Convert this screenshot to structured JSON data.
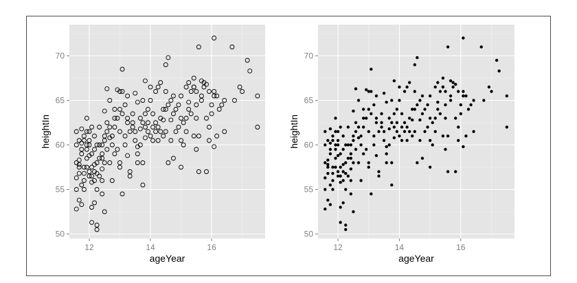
{
  "chart_data": [
    {
      "type": "scatter",
      "marker": "open-circle",
      "xlabel": "ageYear",
      "ylabel": "heightIn",
      "xlim": [
        11.35,
        17.75
      ],
      "ylim": [
        49.5,
        73.5
      ],
      "xticks": [
        "12",
        "14",
        "16"
      ],
      "yticks": [
        "50",
        "55",
        "60",
        "65",
        "70"
      ],
      "grid": true,
      "panel_color": "#e5e5e5",
      "point_color": "#000000",
      "points_source": "shared"
    },
    {
      "type": "scatter",
      "marker": "filled-circle",
      "xlabel": "ageYear",
      "ylabel": "heightIn",
      "xlim": [
        11.35,
        17.75
      ],
      "ylim": [
        49.5,
        73.5
      ],
      "xticks": [
        "12",
        "14",
        "16"
      ],
      "yticks": [
        "50",
        "55",
        "60",
        "65",
        "70"
      ],
      "grid": true,
      "panel_color": "#e5e5e5",
      "point_color": "#000000",
      "points_source": "shared"
    }
  ],
  "points": [
    [
      11.58,
      56.3
    ],
    [
      11.67,
      57.5
    ],
    [
      11.58,
      61.5
    ],
    [
      11.75,
      61.8
    ],
    [
      11.67,
      60.5
    ],
    [
      11.58,
      60.0
    ],
    [
      11.58,
      55.0
    ],
    [
      11.67,
      56.8
    ],
    [
      11.75,
      59.5
    ],
    [
      11.83,
      56.0
    ],
    [
      11.92,
      57.5
    ],
    [
      11.92,
      61.5
    ],
    [
      11.67,
      53.8
    ],
    [
      11.75,
      53.3
    ],
    [
      11.58,
      52.8
    ],
    [
      11.83,
      61.0
    ],
    [
      11.92,
      58.5
    ],
    [
      12.0,
      60.0
    ],
    [
      12.08,
      59.0
    ],
    [
      12.0,
      57.0
    ],
    [
      12.08,
      56.5
    ],
    [
      12.17,
      56.0
    ],
    [
      12.25,
      55.0
    ],
    [
      12.17,
      57.8
    ],
    [
      12.25,
      60.0
    ],
    [
      12.33,
      58.5
    ],
    [
      12.42,
      59.0
    ],
    [
      12.5,
      60.5
    ],
    [
      12.58,
      61.5
    ],
    [
      12.67,
      62.0
    ],
    [
      12.75,
      60.0
    ],
    [
      12.83,
      62.0
    ],
    [
      12.92,
      63.0
    ],
    [
      13.0,
      64.0
    ],
    [
      13.08,
      66.0
    ],
    [
      13.17,
      64.5
    ],
    [
      13.25,
      63.0
    ],
    [
      13.33,
      61.5
    ],
    [
      13.42,
      62.0
    ],
    [
      13.5,
      60.5
    ],
    [
      13.58,
      59.0
    ],
    [
      13.67,
      61.8
    ],
    [
      13.75,
      62.5
    ],
    [
      13.83,
      63.5
    ],
    [
      13.92,
      64.0
    ],
    [
      14.0,
      65.0
    ],
    [
      14.08,
      62.0
    ],
    [
      14.17,
      61.5
    ],
    [
      14.25,
      60.5
    ],
    [
      14.33,
      63.0
    ],
    [
      14.42,
      62.8
    ],
    [
      14.5,
      66.0
    ],
    [
      14.58,
      64.5
    ],
    [
      14.67,
      65.0
    ],
    [
      14.75,
      63.5
    ],
    [
      14.83,
      64.0
    ],
    [
      14.92,
      62.0
    ],
    [
      15.0,
      60.5
    ],
    [
      15.08,
      62.5
    ],
    [
      15.17,
      63.0
    ],
    [
      15.25,
      64.0
    ],
    [
      15.33,
      66.0
    ],
    [
      15.42,
      66.5
    ],
    [
      15.5,
      63.0
    ],
    [
      15.58,
      61.0
    ],
    [
      15.67,
      65.5
    ],
    [
      15.75,
      67.0
    ],
    [
      15.83,
      63.0
    ],
    [
      15.92,
      62.0
    ],
    [
      16.0,
      64.5
    ],
    [
      16.08,
      66.0
    ],
    [
      16.17,
      65.5
    ],
    [
      16.33,
      64.5
    ],
    [
      16.42,
      65.0
    ],
    [
      16.67,
      71.0
    ],
    [
      16.92,
      66.5
    ],
    [
      17.17,
      69.5
    ],
    [
      17.25,
      68.3
    ],
    [
      17.5,
      65.5
    ],
    [
      17.5,
      62.0
    ],
    [
      16.08,
      72.0
    ],
    [
      15.58,
      71.0
    ],
    [
      14.58,
      69.8
    ],
    [
      14.5,
      69.0
    ],
    [
      13.08,
      68.5
    ],
    [
      12.08,
      51.3
    ],
    [
      12.25,
      51.0
    ],
    [
      12.25,
      50.5
    ],
    [
      12.5,
      52.5
    ],
    [
      12.42,
      54.5
    ],
    [
      13.08,
      54.5
    ],
    [
      13.75,
      55.5
    ],
    [
      12.58,
      66.3
    ],
    [
      12.92,
      66.2
    ],
    [
      13.83,
      67.2
    ],
    [
      14.25,
      66.5
    ],
    [
      15.0,
      65.5
    ],
    [
      15.25,
      67.0
    ],
    [
      15.42,
      66.5
    ],
    [
      15.67,
      67.2
    ],
    [
      15.83,
      66.8
    ],
    [
      16.08,
      65.5
    ],
    [
      14.75,
      58.5
    ],
    [
      15.0,
      57.5
    ],
    [
      15.5,
      59.5
    ],
    [
      15.58,
      57.0
    ],
    [
      15.83,
      57.0
    ],
    [
      16.08,
      59.8
    ],
    [
      16.42,
      61.5
    ],
    [
      15.92,
      60.5
    ],
    [
      11.67,
      58.3
    ],
    [
      11.83,
      57.5
    ],
    [
      12.0,
      58.8
    ],
    [
      12.08,
      55.8
    ],
    [
      12.17,
      57.0
    ],
    [
      12.33,
      56.5
    ],
    [
      12.42,
      57.3
    ],
    [
      12.5,
      58.0
    ],
    [
      12.58,
      59.5
    ],
    [
      12.67,
      58.0
    ],
    [
      12.75,
      61.0
    ],
    [
      12.83,
      59.0
    ],
    [
      13.0,
      61.5
    ],
    [
      13.17,
      60.0
    ],
    [
      13.25,
      62.5
    ],
    [
      13.42,
      63.5
    ],
    [
      13.58,
      64.8
    ],
    [
      13.67,
      60.0
    ],
    [
      13.83,
      60.8
    ],
    [
      13.92,
      62.5
    ],
    [
      14.08,
      63.5
    ],
    [
      14.33,
      61.5
    ],
    [
      14.42,
      64.0
    ],
    [
      14.67,
      62.8
    ],
    [
      14.92,
      64.5
    ],
    [
      15.17,
      61.5
    ],
    [
      15.33,
      63.5
    ],
    [
      15.5,
      64.5
    ],
    [
      11.75,
      59.0
    ],
    [
      11.83,
      56.8
    ],
    [
      11.92,
      60.0
    ],
    [
      12.0,
      61.5
    ],
    [
      12.17,
      61.0
    ],
    [
      12.33,
      62.0
    ],
    [
      12.5,
      63.8
    ],
    [
      12.67,
      65.0
    ],
    [
      12.83,
      64.0
    ],
    [
      13.0,
      66.0
    ],
    [
      13.25,
      65.5
    ],
    [
      13.5,
      65.8
    ],
    [
      13.75,
      65.0
    ],
    [
      14.0,
      66.5
    ],
    [
      14.17,
      66.0
    ],
    [
      14.33,
      67.0
    ],
    [
      11.92,
      63.0
    ],
    [
      12.08,
      62.0
    ],
    [
      12.42,
      60.0
    ],
    [
      12.75,
      56.0
    ],
    [
      13.0,
      57.5
    ],
    [
      13.33,
      57.0
    ],
    [
      13.58,
      58.0
    ],
    [
      13.75,
      58.0
    ],
    [
      14.0,
      61.0
    ],
    [
      14.25,
      62.0
    ],
    [
      14.5,
      61.5
    ],
    [
      14.83,
      61.5
    ],
    [
      15.08,
      60.0
    ],
    [
      15.42,
      61.0
    ],
    [
      11.67,
      57.8
    ],
    [
      11.75,
      55.5
    ],
    [
      11.83,
      60.5
    ],
    [
      11.92,
      59.5
    ],
    [
      12.0,
      56.5
    ],
    [
      12.08,
      57.5
    ],
    [
      12.25,
      58.0
    ],
    [
      12.33,
      60.0
    ],
    [
      12.5,
      61.0
    ],
    [
      12.58,
      62.5
    ],
    [
      12.83,
      63.0
    ],
    [
      13.08,
      63.5
    ],
    [
      13.42,
      62.5
    ],
    [
      13.67,
      63.0
    ],
    [
      13.92,
      61.5
    ],
    [
      14.17,
      62.5
    ],
    [
      14.5,
      64.0
    ],
    [
      14.75,
      65.5
    ],
    [
      15.0,
      63.0
    ],
    [
      15.25,
      64.8
    ],
    [
      15.5,
      66.0
    ],
    [
      15.75,
      66.5
    ],
    [
      16.0,
      63.5
    ],
    [
      11.58,
      58.0
    ],
    [
      11.75,
      60.2
    ],
    [
      12.0,
      60.5
    ],
    [
      12.17,
      59.5
    ],
    [
      12.42,
      58.5
    ],
    [
      12.67,
      60.8
    ],
    [
      12.92,
      59.5
    ],
    [
      13.17,
      61.0
    ],
    [
      13.5,
      61.5
    ],
    [
      13.83,
      62.0
    ],
    [
      14.08,
      60.5
    ],
    [
      14.42,
      61.0
    ],
    [
      14.67,
      60.5
    ],
    [
      15.17,
      66.5
    ],
    [
      15.42,
      67.5
    ],
    [
      15.67,
      65.0
    ],
    [
      15.92,
      66.0
    ],
    [
      16.25,
      64.0
    ],
    [
      13.33,
      56.5
    ],
    [
      13.58,
      59.8
    ],
    [
      12.25,
      56.8
    ],
    [
      12.42,
      56.0
    ],
    [
      12.17,
      53.5
    ],
    [
      12.08,
      53.0
    ],
    [
      11.83,
      55.0
    ],
    [
      13.0,
      58.0
    ],
    [
      13.25,
      58.8
    ],
    [
      14.58,
      58.0
    ],
    [
      16.17,
      61.0
    ],
    [
      16.75,
      65.0
    ],
    [
      17.0,
      66.0
    ]
  ]
}
